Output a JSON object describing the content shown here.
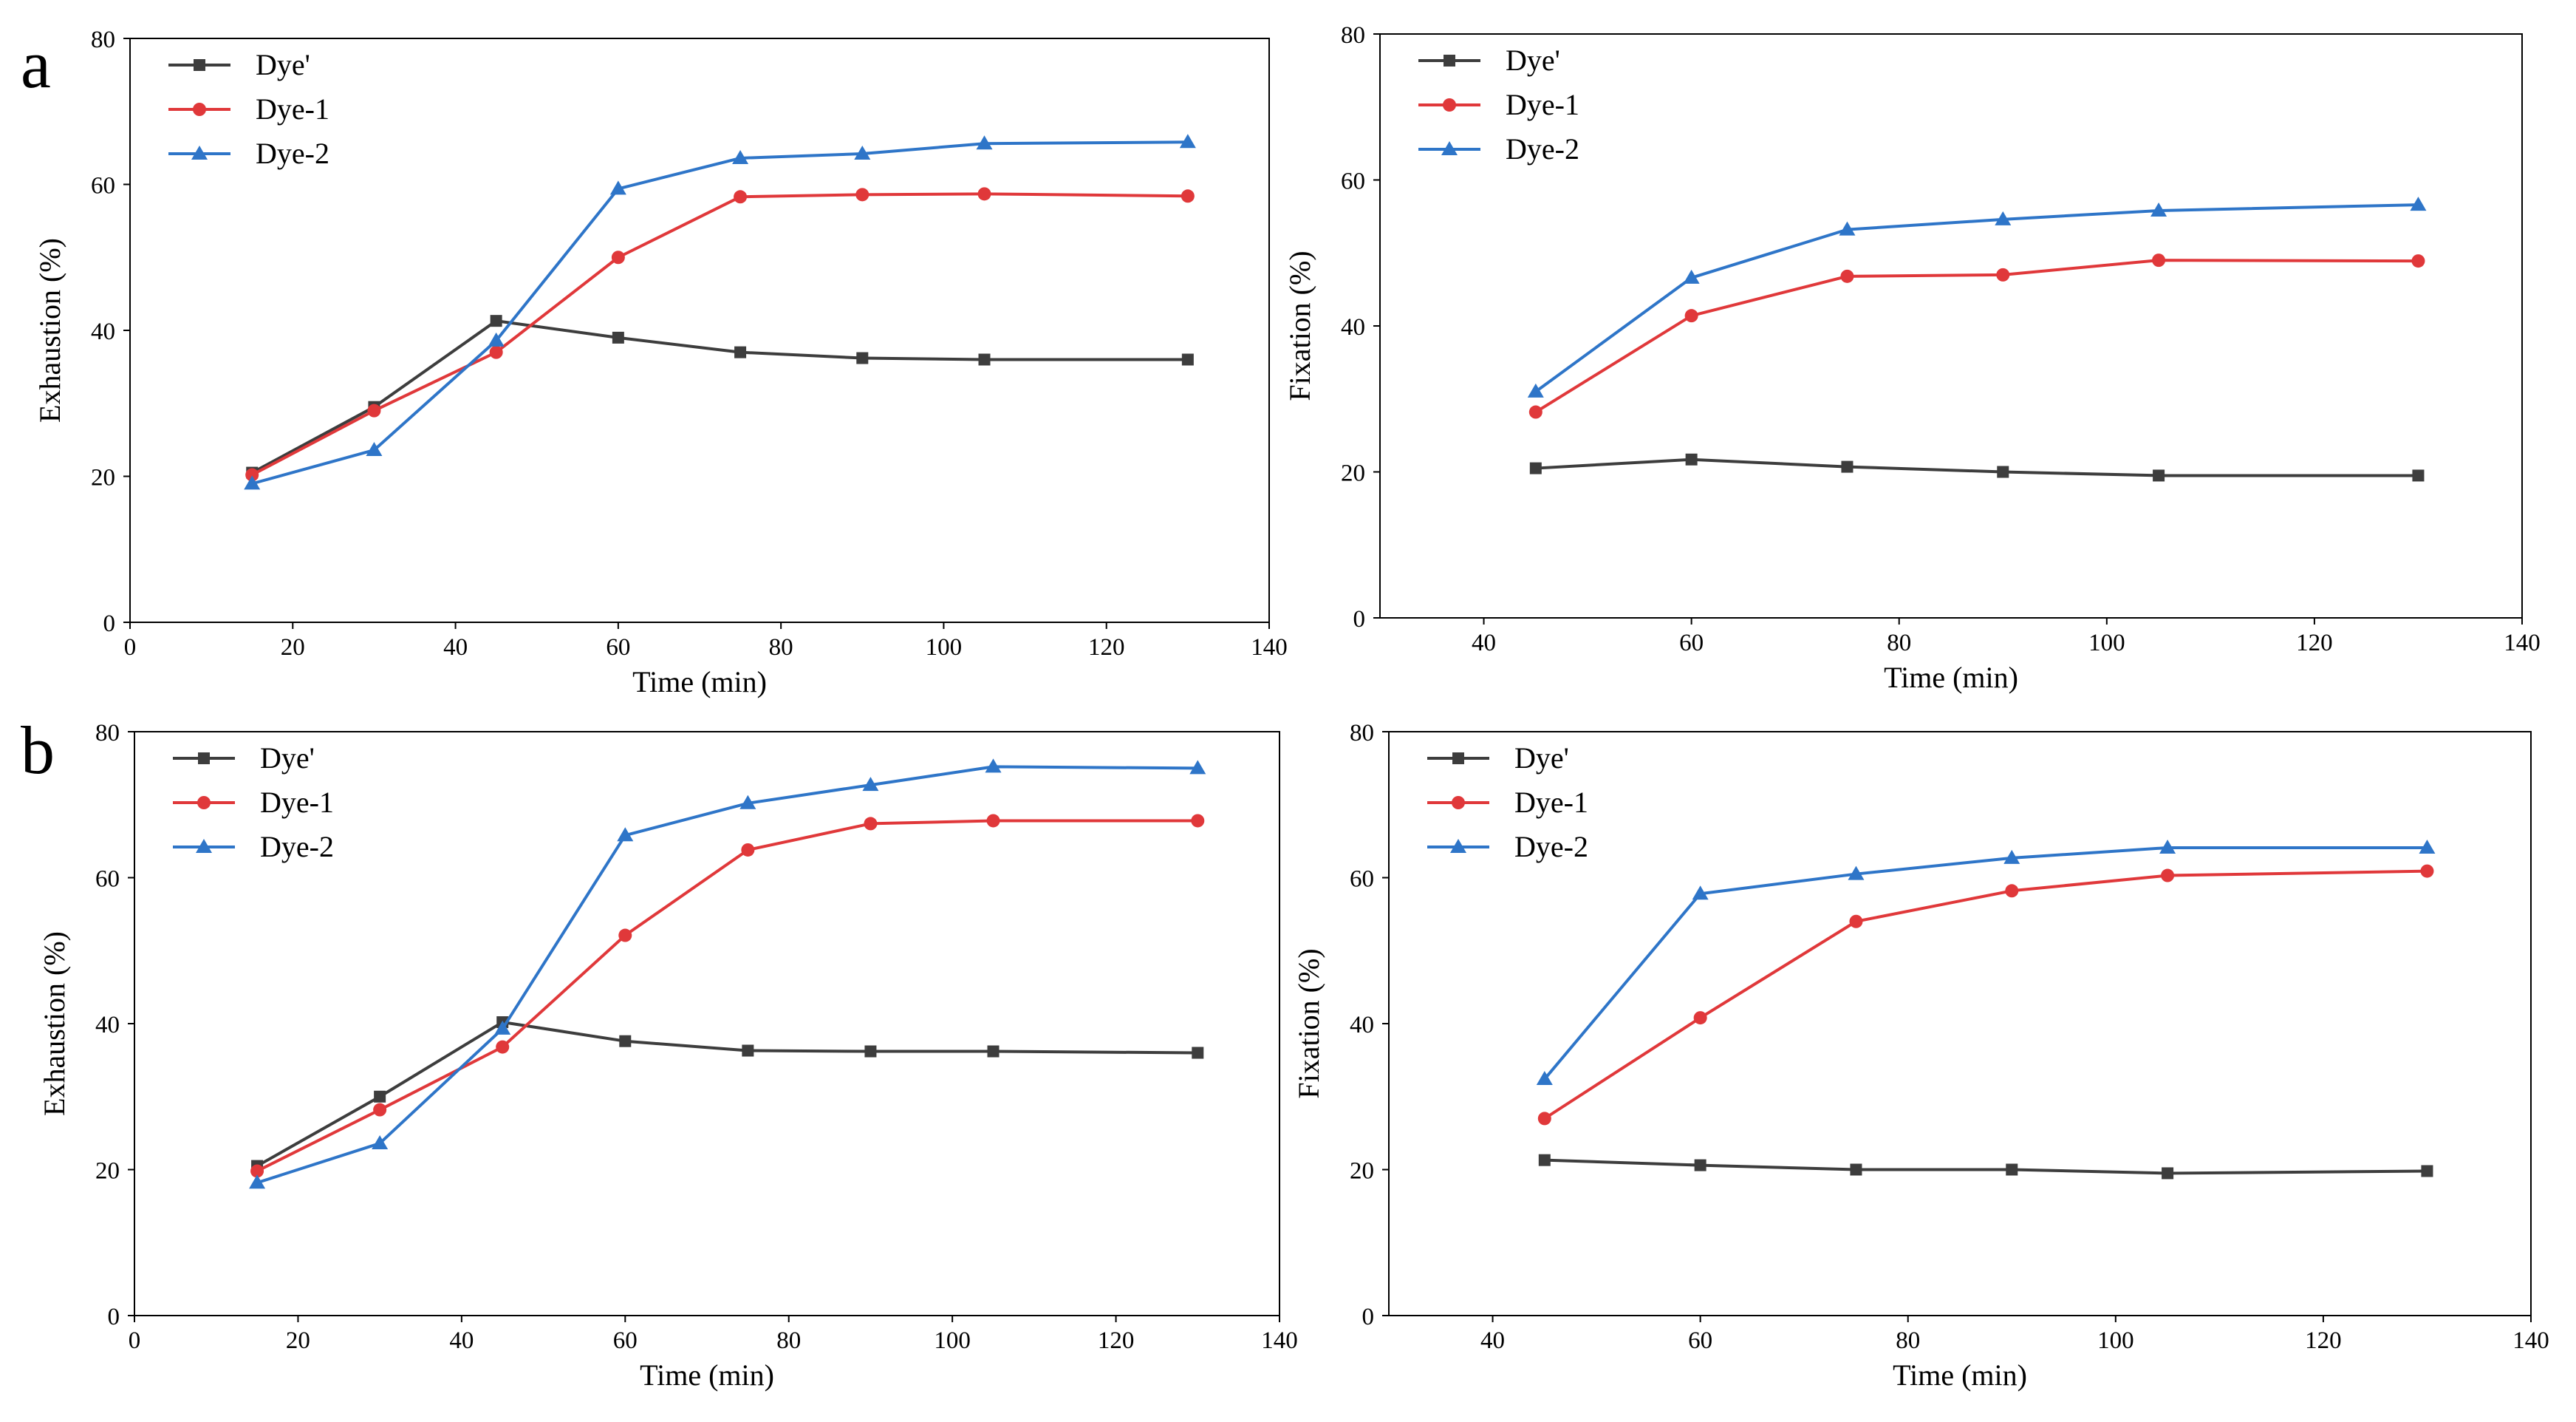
{
  "figure": {
    "panel_labels": [
      "a",
      "b"
    ]
  },
  "chart_data": [
    {
      "id": "a-exhaustion",
      "panel": "a",
      "type": "line",
      "xlabel": "Time (min)",
      "ylabel": "Exhaustion (%)",
      "xlim": [
        0,
        140
      ],
      "ylim": [
        0,
        80
      ],
      "xticks": [
        0,
        20,
        40,
        60,
        80,
        100,
        120,
        140
      ],
      "yticks": [
        0,
        20,
        40,
        60,
        80
      ],
      "grid": false,
      "legend_position": "top-left",
      "series": [
        {
          "name": "Dye'",
          "color": "#3d3d3d",
          "marker": "square",
          "x": [
            15,
            30,
            45,
            60,
            75,
            90,
            105,
            130
          ],
          "y": [
            20.5,
            29.5,
            41.3,
            39.0,
            37.0,
            36.2,
            36.0,
            36.0
          ]
        },
        {
          "name": "Dye-1",
          "color": "#e0383a",
          "marker": "circle",
          "x": [
            15,
            30,
            45,
            60,
            75,
            90,
            105,
            130
          ],
          "y": [
            20.2,
            29.0,
            37.0,
            50.0,
            58.3,
            58.6,
            58.7,
            58.4
          ]
        },
        {
          "name": "Dye-2",
          "color": "#2e75c8",
          "marker": "triangle",
          "x": [
            15,
            30,
            45,
            60,
            75,
            90,
            105,
            130
          ],
          "y": [
            19.0,
            23.6,
            38.6,
            59.4,
            63.6,
            64.2,
            65.6,
            65.8
          ]
        }
      ]
    },
    {
      "id": "a-fixation",
      "panel": "a",
      "type": "line",
      "xlabel": "Time (min)",
      "ylabel": "Fixation (%)",
      "xlim": [
        30,
        140
      ],
      "ylim": [
        0,
        80
      ],
      "xticks": [
        40,
        60,
        80,
        100,
        120,
        140
      ],
      "yticks": [
        0,
        20,
        40,
        60,
        80
      ],
      "grid": false,
      "legend_position": "top-left",
      "series": [
        {
          "name": "Dye'",
          "color": "#3d3d3d",
          "marker": "square",
          "x": [
            45,
            60,
            75,
            90,
            105,
            130
          ],
          "y": [
            20.5,
            21.7,
            20.7,
            20.0,
            19.5,
            19.5
          ]
        },
        {
          "name": "Dye-1",
          "color": "#e0383a",
          "marker": "circle",
          "x": [
            45,
            60,
            75,
            90,
            105,
            130
          ],
          "y": [
            28.2,
            41.4,
            46.8,
            47.0,
            49.0,
            48.9
          ]
        },
        {
          "name": "Dye-2",
          "color": "#2e75c8",
          "marker": "triangle",
          "x": [
            45,
            60,
            75,
            90,
            105,
            130
          ],
          "y": [
            31.0,
            46.6,
            53.2,
            54.6,
            55.8,
            56.6
          ]
        }
      ]
    },
    {
      "id": "b-exhaustion",
      "panel": "b",
      "type": "line",
      "xlabel": "Time (min)",
      "ylabel": "Exhaustion (%)",
      "xlim": [
        0,
        140
      ],
      "ylim": [
        0,
        80
      ],
      "xticks": [
        0,
        20,
        40,
        60,
        80,
        100,
        120,
        140
      ],
      "yticks": [
        0,
        20,
        40,
        60,
        80
      ],
      "grid": false,
      "legend_position": "top-left",
      "series": [
        {
          "name": "Dye'",
          "color": "#3d3d3d",
          "marker": "square",
          "x": [
            15,
            30,
            45,
            60,
            75,
            90,
            105,
            130
          ],
          "y": [
            20.5,
            30.0,
            40.2,
            37.6,
            36.3,
            36.2,
            36.2,
            36.0
          ]
        },
        {
          "name": "Dye-1",
          "color": "#e0383a",
          "marker": "circle",
          "x": [
            15,
            30,
            45,
            60,
            75,
            90,
            105,
            130
          ],
          "y": [
            19.8,
            28.2,
            36.8,
            52.1,
            63.8,
            67.4,
            67.8,
            67.8
          ]
        },
        {
          "name": "Dye-2",
          "color": "#2e75c8",
          "marker": "triangle",
          "x": [
            15,
            30,
            45,
            60,
            75,
            90,
            105,
            130
          ],
          "y": [
            18.2,
            23.6,
            39.3,
            65.8,
            70.2,
            72.7,
            75.2,
            75.0
          ]
        }
      ]
    },
    {
      "id": "b-fixation",
      "panel": "b",
      "type": "line",
      "xlabel": "Time (min)",
      "ylabel": "Fixation (%)",
      "xlim": [
        30,
        140
      ],
      "ylim": [
        0,
        80
      ],
      "xticks": [
        40,
        60,
        80,
        100,
        120,
        140
      ],
      "yticks": [
        0,
        20,
        40,
        60,
        80
      ],
      "grid": false,
      "legend_position": "top-left",
      "series": [
        {
          "name": "Dye'",
          "color": "#3d3d3d",
          "marker": "square",
          "x": [
            45,
            60,
            75,
            90,
            105,
            130
          ],
          "y": [
            21.3,
            20.6,
            20.0,
            20.0,
            19.5,
            19.8
          ]
        },
        {
          "name": "Dye-1",
          "color": "#e0383a",
          "marker": "circle",
          "x": [
            45,
            60,
            75,
            90,
            105,
            130
          ],
          "y": [
            27.0,
            40.8,
            54.0,
            58.2,
            60.3,
            60.9
          ]
        },
        {
          "name": "Dye-2",
          "color": "#2e75c8",
          "marker": "triangle",
          "x": [
            45,
            60,
            75,
            90,
            105,
            130
          ],
          "y": [
            32.4,
            57.8,
            60.5,
            62.7,
            64.1,
            64.1
          ]
        }
      ]
    }
  ]
}
